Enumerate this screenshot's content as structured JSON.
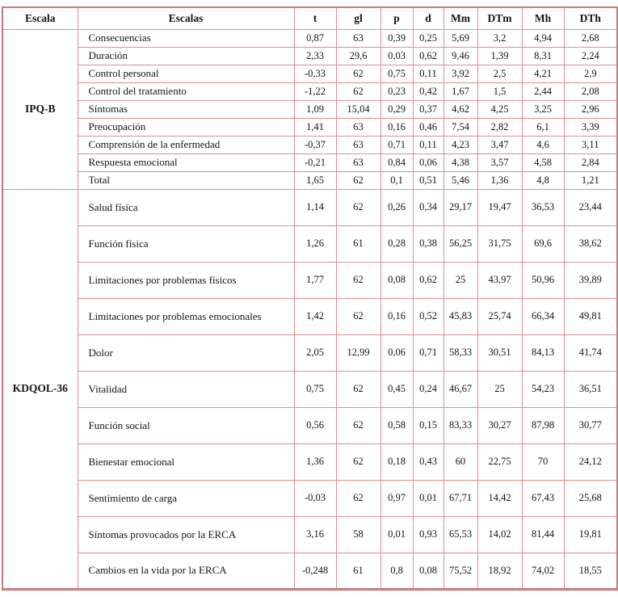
{
  "colors": {
    "grid_border": "#db9092",
    "outer_border": "#c67a7c",
    "text": "#141414",
    "background": "#ffffff"
  },
  "columns": [
    "Escala",
    "Escalas",
    "t",
    "gl",
    "p",
    "d",
    "Mm",
    "DTm",
    "Mh",
    "DTh"
  ],
  "groups": [
    {
      "scale": "IPQ-B",
      "rows": [
        {
          "label": "Consecuencias",
          "values": [
            "0,87",
            "63",
            "0,39",
            "0,25",
            "5,69",
            "3,2",
            "4,94",
            "2,68"
          ]
        },
        {
          "label": "Duración",
          "values": [
            "2,33",
            "29,6",
            "0,03",
            "0,62",
            "9,46",
            "1,39",
            "8,31",
            "2,24"
          ]
        },
        {
          "label": "Control personal",
          "values": [
            "-0,33",
            "62",
            "0,75",
            "0,11",
            "3,92",
            "2,5",
            "4,21",
            "2,9"
          ]
        },
        {
          "label": "Control del tratamiento",
          "values": [
            "-1,22",
            "62",
            "0,23",
            "0,42",
            "1,67",
            "1,5",
            "2,44",
            "2,08"
          ]
        },
        {
          "label": "Síntomas",
          "values": [
            "1,09",
            "15,04",
            "0,29",
            "0,37",
            "4,62",
            "4,25",
            "3,25",
            "2,96"
          ]
        },
        {
          "label": "Preocupación",
          "values": [
            "1,41",
            "63",
            "0,16",
            "0,46",
            "7,54",
            "2,82",
            "6,1",
            "3,39"
          ]
        },
        {
          "label": "Comprensión de la enfermedad",
          "values": [
            "-0,37",
            "63",
            "0,71",
            "0,11",
            "4,23",
            "3,47",
            "4,6",
            "3,11"
          ]
        },
        {
          "label": "Respuesta emocional",
          "values": [
            "-0,21",
            "63",
            "0,84",
            "0,06",
            "4,38",
            "3,57",
            "4,58",
            "2,84"
          ]
        },
        {
          "label": "Total",
          "values": [
            "1,65",
            "62",
            "0,1",
            "0,51",
            "5,46",
            "1,36",
            "4,8",
            "1,21"
          ]
        }
      ]
    },
    {
      "scale": "KDQOL-36",
      "rows": [
        {
          "label": "Salud física",
          "values": [
            "1,14",
            "62",
            "0,26",
            "0,34",
            "29,17",
            "19,47",
            "36,53",
            "23,44"
          ]
        },
        {
          "label": "Función física",
          "values": [
            "1,26",
            "61",
            "0,28",
            "0,38",
            "56,25",
            "31,75",
            "69,6",
            "38,62"
          ]
        },
        {
          "label": "Limitaciones por problemas físicos",
          "values": [
            "1,77",
            "62",
            "0,08",
            "0,62",
            "25",
            "43,97",
            "50,96",
            "39,89"
          ]
        },
        {
          "label": "Limitaciones por problemas emocionales",
          "values": [
            "1,42",
            "62",
            "0,16",
            "0,52",
            "45,83",
            "25,74",
            "66,34",
            "49,81"
          ]
        },
        {
          "label": "Dolor",
          "values": [
            "2,05",
            "12,99",
            "0,06",
            "0,71",
            "58,33",
            "30,51",
            "84,13",
            "41,74"
          ]
        },
        {
          "label": "Vitalidad",
          "values": [
            "0,75",
            "62",
            "0,45",
            "0,24",
            "46,67",
            "25",
            "54,23",
            "36,51"
          ]
        },
        {
          "label": "Función social",
          "values": [
            "0,56",
            "62",
            "0,58",
            "0,15",
            "83,33",
            "30,27",
            "87,98",
            "30,77"
          ]
        },
        {
          "label": "Bienestar emocional",
          "values": [
            "1,36",
            "62",
            "0,18",
            "0,43",
            "60",
            "22,75",
            "70",
            "24,12"
          ]
        },
        {
          "label": "Sentimiento de carga",
          "values": [
            "-0,03",
            "62",
            "0,97",
            "0,01",
            "67,71",
            "14,42",
            "67,43",
            "25,68"
          ]
        },
        {
          "label": "Síntomas provocados por la ERCA",
          "values": [
            "3,16",
            "58",
            "0,01",
            "0,93",
            "65,53",
            "14,02",
            "81,44",
            "19,81"
          ]
        },
        {
          "label": "Cambios en la vida por la ERCA",
          "values": [
            "-0,248",
            "61",
            "0,8",
            "0,08",
            "75,52",
            "18,92",
            "74,02",
            "18,55"
          ]
        }
      ]
    }
  ]
}
